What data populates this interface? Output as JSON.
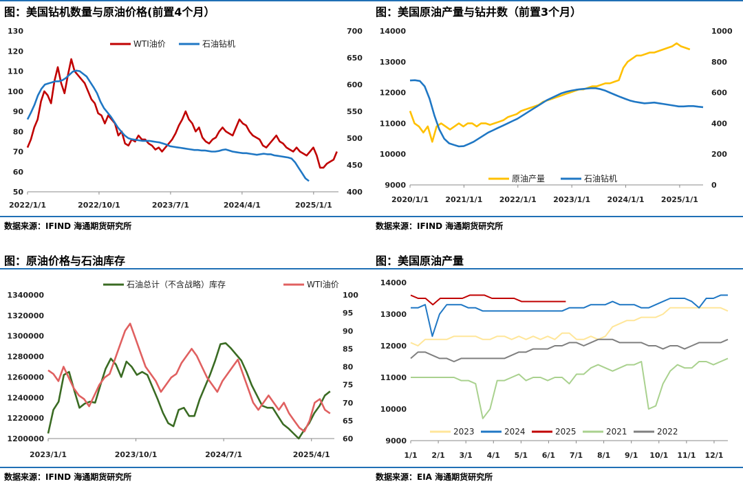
{
  "panels": [
    {
      "title": "图：美国钻机数量与原油价格(前置4个月）",
      "source": "数据来源：IFIND   海通期货研究所"
    },
    {
      "title": "图：美国原油产量与钻井数（前置3个月）",
      "source": "数据来源：IFIND   海通期货研究所"
    },
    {
      "title": "图：原油价格与石油库存",
      "source": "数据来源：IFIND   海通期货研究所"
    },
    {
      "title": "图：美国原油产量",
      "source": "数据来源：EIA   海通期货研究所"
    }
  ],
  "colors": {
    "red": "#c00000",
    "blue": "#1f77c4",
    "gold": "#ffc000",
    "darkgreen": "#3a6b23",
    "lightred": "#e06060",
    "cream": "#ffe699",
    "lightgreen": "#a9d18e",
    "gray": "#7f7f7f",
    "accent": "#1f6fb5"
  },
  "chart_data": [
    {
      "type": "line",
      "x_ticks": [
        "2022/1/1",
        "2022/10/1",
        "2023/7/1",
        "2024/4/1",
        "2025/1/1"
      ],
      "ylim_left": [
        50,
        130
      ],
      "yticks_left": [
        50,
        60,
        70,
        80,
        90,
        100,
        110,
        120,
        130
      ],
      "ylim_right": [
        400,
        700
      ],
      "yticks_right": [
        400,
        450,
        500,
        550,
        600,
        650,
        700
      ],
      "series": [
        {
          "name": "WTI油价",
          "axis": "left",
          "color": "red",
          "values": [
            72,
            76,
            82,
            86,
            95,
            100,
            98,
            94,
            105,
            112,
            104,
            99,
            108,
            116,
            110,
            108,
            106,
            104,
            100,
            96,
            94,
            89,
            88,
            84,
            88,
            86,
            84,
            78,
            80,
            74,
            73,
            76,
            75,
            78,
            76,
            76,
            74,
            73,
            71,
            72,
            70,
            72,
            74,
            76,
            79,
            83,
            86,
            90,
            86,
            84,
            80,
            82,
            77,
            75,
            74,
            76,
            77,
            80,
            82,
            80,
            79,
            78,
            82,
            86,
            84,
            83,
            80,
            78,
            77,
            76,
            73,
            72,
            74,
            76,
            78,
            75,
            74,
            72,
            71,
            70,
            72,
            70,
            69,
            68,
            70,
            72,
            68,
            62,
            62,
            64,
            65,
            66,
            70
          ]
        },
        {
          "name": "石油钻机",
          "axis": "right",
          "color": "blue",
          "values": [
            535,
            548,
            562,
            580,
            592,
            600,
            602,
            604,
            606,
            606,
            608,
            612,
            618,
            624,
            626,
            625,
            620,
            615,
            605,
            595,
            584,
            568,
            556,
            548,
            540,
            530,
            520,
            512,
            505,
            500,
            498,
            497,
            496,
            495,
            495,
            495,
            494,
            493,
            492,
            490,
            488,
            485,
            484,
            483,
            482,
            481,
            480,
            479,
            478,
            478,
            477,
            477,
            476,
            475,
            475,
            476,
            478,
            479,
            477,
            475,
            474,
            473,
            472,
            472,
            471,
            470,
            469,
            470,
            471,
            470,
            470,
            468,
            467,
            466,
            465,
            464,
            462,
            455,
            445,
            435,
            425,
            420
          ]
        }
      ]
    },
    {
      "type": "line",
      "x_ticks": [
        "2020/1/1",
        "2021/1/1",
        "2022/1/1",
        "2023/1/1",
        "2024/1/1",
        "2025/1/1"
      ],
      "ylim_left": [
        9000,
        14000
      ],
      "yticks_left": [
        9000,
        10000,
        11000,
        12000,
        13000,
        14000
      ],
      "ylim_right": [
        0,
        1000
      ],
      "yticks_right": [
        0,
        200,
        400,
        600,
        800,
        1000
      ],
      "series": [
        {
          "name": "原油产量",
          "axis": "left",
          "color": "gold",
          "values": [
            11400,
            11000,
            10900,
            10700,
            10900,
            10400,
            10900,
            11000,
            10900,
            10800,
            10900,
            11000,
            10900,
            11000,
            11000,
            10900,
            11000,
            11000,
            10950,
            11000,
            11050,
            11100,
            11200,
            11250,
            11300,
            11400,
            11450,
            11500,
            11550,
            11600,
            11700,
            11750,
            11800,
            11850,
            11900,
            11950,
            12000,
            12050,
            12100,
            12100,
            12150,
            12200,
            12200,
            12250,
            12300,
            12300,
            12350,
            12400,
            12800,
            13000,
            13100,
            13200,
            13200,
            13250,
            13300,
            13300,
            13350,
            13400,
            13450,
            13500,
            13600,
            13500,
            13450,
            13400
          ]
        },
        {
          "name": "石油钻机",
          "axis": "right",
          "color": "blue",
          "values": [
            678,
            680,
            675,
            640,
            560,
            450,
            360,
            300,
            270,
            260,
            250,
            252,
            265,
            280,
            300,
            320,
            340,
            355,
            370,
            385,
            400,
            415,
            430,
            450,
            470,
            490,
            510,
            530,
            550,
            565,
            580,
            595,
            605,
            612,
            618,
            622,
            625,
            628,
            628,
            622,
            612,
            598,
            585,
            572,
            560,
            548,
            540,
            535,
            530,
            532,
            535,
            530,
            525,
            520,
            515,
            510,
            510,
            512,
            512,
            508,
            505
          ]
        }
      ]
    },
    {
      "type": "line",
      "x_ticks": [
        "2023/1/1",
        "2023/10/1",
        "2024/7/1",
        "2025/4/1"
      ],
      "ylim_left": [
        1200000,
        1340000
      ],
      "yticks_left": [
        1200000,
        1220000,
        1240000,
        1260000,
        1280000,
        1300000,
        1320000,
        1340000
      ],
      "ylim_right": [
        60,
        100
      ],
      "yticks_right": [
        60,
        65,
        70,
        75,
        80,
        85,
        90,
        95,
        100
      ],
      "series": [
        {
          "name": "石油总计（不含战略）库存",
          "axis": "left",
          "color": "darkgreen",
          "values": [
            1205000,
            1228000,
            1236000,
            1262000,
            1265000,
            1247000,
            1230000,
            1234000,
            1236000,
            1235000,
            1252000,
            1268000,
            1278000,
            1272000,
            1260000,
            1275000,
            1270000,
            1262000,
            1265000,
            1262000,
            1250000,
            1238000,
            1225000,
            1215000,
            1212000,
            1228000,
            1230000,
            1222000,
            1222000,
            1238000,
            1250000,
            1262000,
            1276000,
            1292000,
            1293000,
            1288000,
            1282000,
            1276000,
            1265000,
            1252000,
            1242000,
            1232000,
            1230000,
            1230000,
            1222000,
            1214000,
            1210000,
            1205000,
            1200000,
            1208000,
            1215000,
            1225000,
            1232000,
            1242000,
            1246000
          ]
        },
        {
          "name": "WTI油价",
          "axis": "right",
          "color": "lightred",
          "values": [
            79,
            78,
            76,
            80,
            77,
            74,
            72,
            71,
            69,
            72,
            75,
            77,
            78,
            82,
            86,
            90,
            92,
            88,
            84,
            80,
            78,
            76,
            73,
            75,
            77,
            78,
            81,
            83,
            85,
            83,
            80,
            77,
            75,
            73,
            76,
            78,
            80,
            82,
            78,
            74,
            70,
            68,
            70,
            72,
            70,
            68,
            70,
            67,
            65,
            63,
            62,
            65,
            70,
            71,
            68,
            67
          ]
        }
      ]
    },
    {
      "type": "line",
      "x_ticks": [
        "1/1",
        "2/1",
        "3/1",
        "4/1",
        "5/1",
        "6/1",
        "7/1",
        "8/1",
        "9/1",
        "10/1",
        "11/1",
        "12/1"
      ],
      "ylim": [
        9000,
        14000
      ],
      "yticks": [
        9000,
        10000,
        11000,
        12000,
        13000,
        14000
      ],
      "series": [
        {
          "name": "2023",
          "color": "cream",
          "values": [
            12100,
            12000,
            12200,
            12200,
            12200,
            12200,
            12300,
            12300,
            12300,
            12300,
            12200,
            12200,
            12300,
            12300,
            12200,
            12300,
            12200,
            12300,
            12200,
            12300,
            12200,
            12400,
            12400,
            12200,
            12200,
            12300,
            12200,
            12300,
            12600,
            12700,
            12800,
            12800,
            12900,
            12900,
            12900,
            13000,
            13200,
            13200,
            13200,
            13200,
            13200,
            13200,
            13200,
            13200,
            13100
          ]
        },
        {
          "name": "2024",
          "color": "blue",
          "values": [
            13200,
            13200,
            13300,
            12300,
            13000,
            13300,
            13300,
            13300,
            13200,
            13200,
            13100,
            13100,
            13100,
            13100,
            13100,
            13100,
            13100,
            13100,
            13100,
            13100,
            13100,
            13100,
            13200,
            13200,
            13200,
            13300,
            13300,
            13300,
            13400,
            13300,
            13300,
            13300,
            13200,
            13200,
            13300,
            13400,
            13500,
            13500,
            13500,
            13400,
            13200,
            13500,
            13500,
            13600,
            13600
          ]
        },
        {
          "name": "2025",
          "color": "red",
          "values": [
            13600,
            13500,
            13500,
            13300,
            13500,
            13500,
            13500,
            13500,
            13600,
            13600,
            13600,
            13500,
            13500,
            13500,
            13500,
            13400,
            13400,
            13400,
            13400,
            13400,
            13400,
            13400
          ]
        },
        {
          "name": "2021",
          "color": "lightgreen",
          "values": [
            11000,
            11000,
            11000,
            11000,
            11000,
            11000,
            11000,
            10900,
            10900,
            10800,
            9700,
            10000,
            10900,
            10900,
            11000,
            11100,
            10900,
            11000,
            11000,
            10900,
            11000,
            11000,
            10800,
            11100,
            11100,
            11300,
            11400,
            11300,
            11200,
            11300,
            11400,
            11400,
            11500,
            10000,
            10100,
            10800,
            11200,
            11400,
            11300,
            11300,
            11500,
            11500,
            11400,
            11500,
            11600
          ]
        },
        {
          "name": "2022",
          "color": "gray",
          "values": [
            11600,
            11800,
            11800,
            11700,
            11600,
            11600,
            11500,
            11600,
            11600,
            11600,
            11600,
            11600,
            11600,
            11600,
            11700,
            11800,
            11800,
            11900,
            11900,
            11900,
            12000,
            12000,
            12100,
            12100,
            12000,
            12100,
            12200,
            12200,
            12200,
            12100,
            12100,
            12100,
            12100,
            12000,
            12000,
            11900,
            12000,
            12000,
            11900,
            12000,
            12100,
            12100,
            12100,
            12100,
            12200
          ]
        }
      ]
    }
  ]
}
